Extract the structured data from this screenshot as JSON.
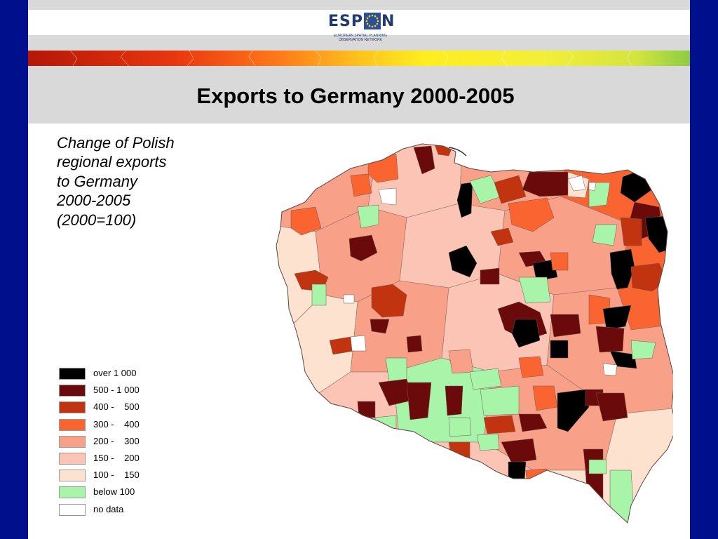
{
  "title": "Exports to Germany 2000-2005",
  "subtitle_lines": [
    "Change of Polish",
    "regional exports",
    "to Germany",
    "2000-2005",
    "(2000=100)"
  ],
  "logo": {
    "word_left": "ESP",
    "word_right": "N",
    "subtitle_line1": "EUROPEAN SPATIAL PLANNING",
    "subtitle_line2": "OBSERVATION NETWORK"
  },
  "colors": {
    "frame": "#000f8c",
    "header_gray": "#d9d9d9",
    "over_1000": "#000000",
    "c500_1000": "#6b0a0a",
    "c400_500": "#c23310",
    "c300_400": "#fa6430",
    "c200_300": "#f8a088",
    "c150_200": "#fcc4b4",
    "c100_150": "#fde2d0",
    "below_100": "#a8f4a8",
    "no_data": "#ffffff"
  },
  "legend": [
    {
      "label": "over 1 000",
      "color": "#000000"
    },
    {
      "label": "500 - 1 000",
      "color": "#6b0a0a"
    },
    {
      "label": "400 -    500",
      "color": "#c23310"
    },
    {
      "label": "300 -    400",
      "color": "#fa6430"
    },
    {
      "label": "200 -    300",
      "color": "#f8a088"
    },
    {
      "label": "150 -    200",
      "color": "#fcc4b4"
    },
    {
      "label": "100 -    150",
      "color": "#fde2d0"
    },
    {
      "label": "below 100",
      "color": "#a8f4a8"
    },
    {
      "label": "no data",
      "color": "#ffffff"
    }
  ]
}
